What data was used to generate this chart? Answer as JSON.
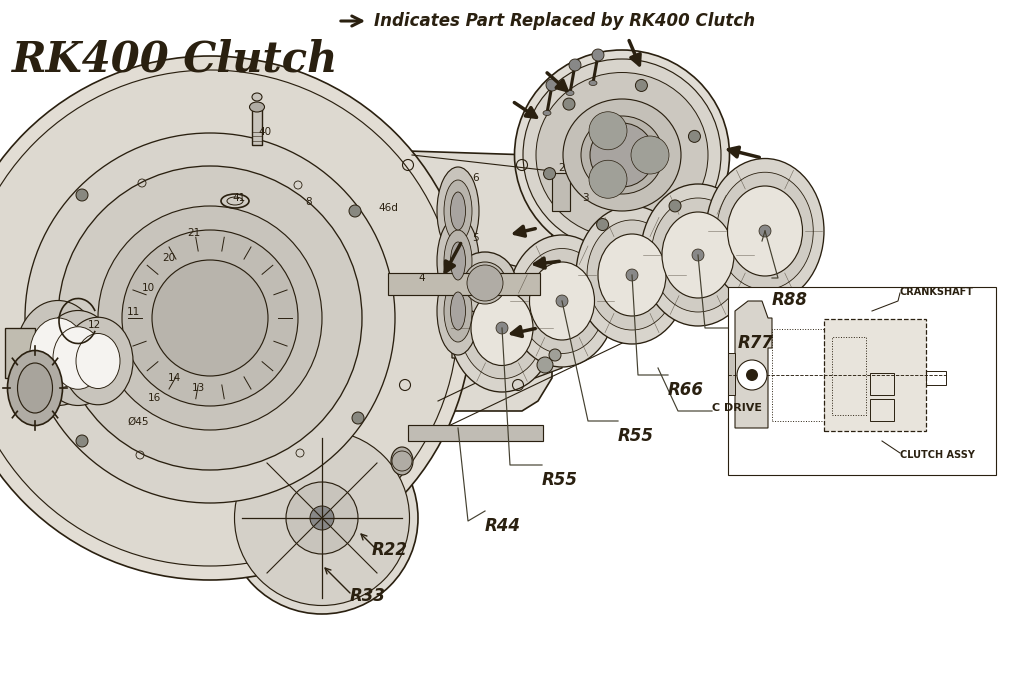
{
  "bg_color": "#f5f3f0",
  "lc": "#2a2010",
  "title": "RK400 Clutch",
  "subtitle": "Indicates Part Replaced by RK400 Clutch",
  "title_fs": 30,
  "subtitle_fs": 12,
  "labels_R": [
    [
      "R88",
      7.72,
      3.78
    ],
    [
      "R77",
      7.38,
      3.35
    ],
    [
      "R55",
      6.18,
      2.42
    ],
    [
      "R66",
      6.68,
      2.88
    ],
    [
      "R55",
      5.42,
      1.98
    ],
    [
      "R44",
      4.85,
      1.52
    ],
    [
      "R22",
      3.72,
      1.28
    ],
    [
      "R33",
      3.5,
      0.82
    ]
  ],
  "label_C_DRIVE": [
    7.12,
    2.72
  ],
  "label_CRANKSHAFT": [
    9.0,
    3.88
  ],
  "label_CLUTCH_ASSY": [
    9.0,
    2.25
  ],
  "small_nums": [
    [
      "40",
      2.58,
      5.48
    ],
    [
      "41",
      2.32,
      4.82
    ],
    [
      "46d",
      3.78,
      4.72
    ],
    [
      "6",
      4.72,
      5.02
    ],
    [
      "2",
      5.58,
      5.12
    ],
    [
      "3",
      5.82,
      4.82
    ],
    [
      "5",
      4.72,
      4.42
    ],
    [
      "4",
      4.18,
      4.02
    ],
    [
      "8",
      3.05,
      4.78
    ],
    [
      "21",
      1.87,
      4.47
    ],
    [
      "20",
      1.62,
      4.22
    ],
    [
      "10",
      1.42,
      3.92
    ],
    [
      "11",
      1.27,
      3.68
    ],
    [
      "12",
      0.88,
      3.55
    ],
    [
      "14",
      1.68,
      3.02
    ],
    [
      "16",
      1.48,
      2.82
    ],
    [
      "13",
      1.92,
      2.92
    ],
    [
      "Ø45",
      1.27,
      2.58
    ]
  ]
}
